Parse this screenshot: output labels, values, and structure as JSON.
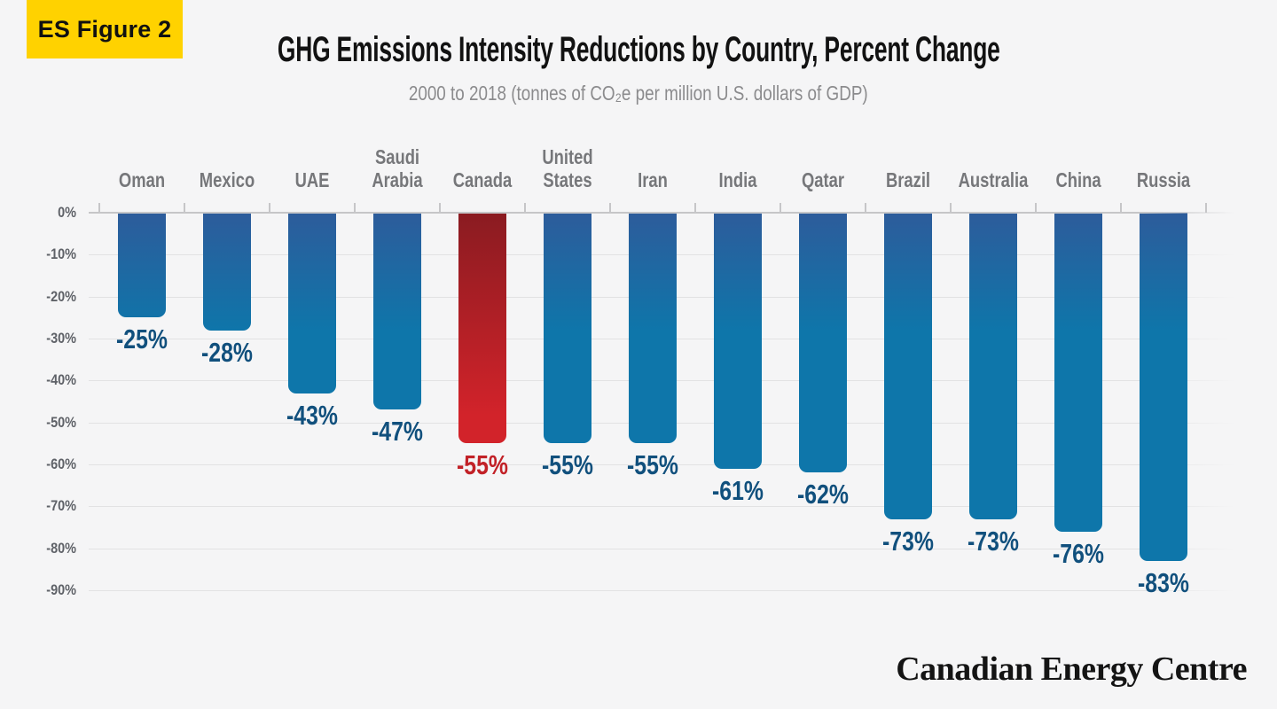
{
  "badge": {
    "label": "ES Figure 2"
  },
  "header": {
    "title": "GHG Emissions Intensity Reductions by Country, Percent Change",
    "subtitle": "2000 to 2018 (tonnes of CO₂e per million U.S. dollars of GDP)"
  },
  "footer": {
    "brand": "Canadian Energy Centre"
  },
  "chart_data": {
    "type": "bar",
    "title": "GHG Emissions Intensity Reductions by Country, Percent Change",
    "subtitle": "2000 to 2018 (tonnes of CO₂e per million U.S. dollars of GDP)",
    "categories": [
      "Oman",
      "Mexico",
      "UAE",
      "Saudi Arabia",
      "Canada",
      "United States",
      "Iran",
      "India",
      "Qatar",
      "Brazil",
      "Australia",
      "China",
      "Russia"
    ],
    "values": [
      -25,
      -28,
      -43,
      -47,
      -55,
      -55,
      -55,
      -61,
      -62,
      -73,
      -73,
      -76,
      -83
    ],
    "value_labels": [
      "-25%",
      "-28%",
      "-43%",
      "-47%",
      "-55%",
      "-55%",
      "-55%",
      "-61%",
      "-62%",
      "-73%",
      "-73%",
      "-76%",
      "-83%"
    ],
    "highlight_index": 4,
    "highlight_category": "Canada",
    "unit": "percent change",
    "ylim": [
      0,
      -90
    ],
    "y_ticks": [
      "0%",
      "-10%",
      "-20%",
      "-30%",
      "-40%",
      "-50%",
      "-60%",
      "-70%",
      "-80%",
      "-90%"
    ],
    "grid": true,
    "legend": "none",
    "colors": {
      "background": "#f5f5f6",
      "badge_yellow": "#ffd200",
      "bar_blue_top": "#2d5c9b",
      "bar_blue": "#0e76aa",
      "bar_red_top": "#8a1b21",
      "bar_red": "#d2232a",
      "value_label_blue": "#11507d",
      "value_label_red": "#c22127",
      "category_label": "#76777a",
      "axis_label": "#5f6268",
      "gridline": "#e2e2e3",
      "zero_line": "#c6c6c8"
    }
  }
}
